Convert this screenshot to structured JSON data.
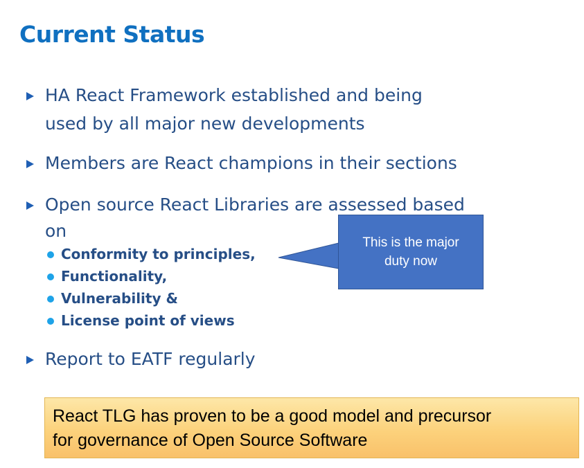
{
  "slide": {
    "title": "Current Status",
    "bullets": [
      {
        "lines": [
          "HA React Framework established and being",
          "used by all major new developments"
        ]
      },
      {
        "lines": [
          "Members are React champions in their sections"
        ]
      },
      {
        "lines": [
          "Open source React Libraries are assessed based",
          "on"
        ]
      },
      {
        "lines": [
          "Report to EATF regularly"
        ]
      }
    ],
    "sub_bullets": [
      "Conformity to principles,",
      "Functionality,",
      "Vulnerability &",
      "License point of views"
    ],
    "callout": {
      "lines": [
        "This is the major",
        "duty now"
      ]
    },
    "note": {
      "lines": [
        "React TLG has proven to be a good model and precursor",
        "for governance of Open Source Software"
      ]
    },
    "colors": {
      "title": "#1070c0",
      "body_text": "#264e86",
      "bullet_marker": "#1f5fb4",
      "sub_bullet_marker": "#1ea3e8",
      "callout_fill": "#4472c4",
      "note_fill": "#fcd27c"
    }
  }
}
